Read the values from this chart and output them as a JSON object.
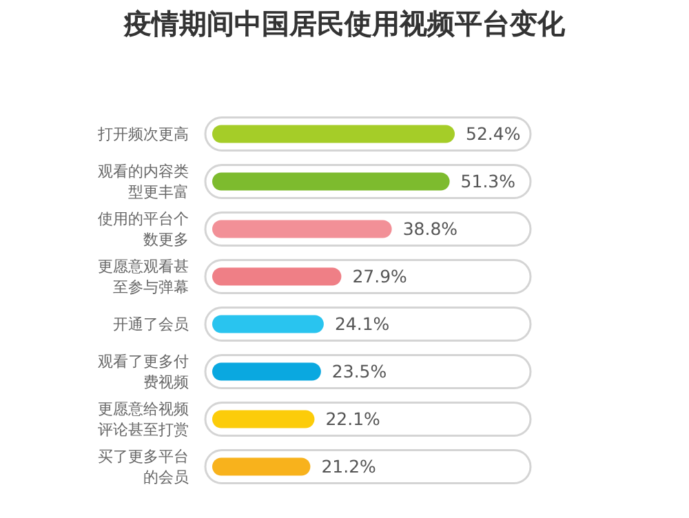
{
  "chart_data": {
    "type": "bar",
    "orientation": "horizontal",
    "title": "疫情期间中国居民使用视频平台变化",
    "categories": [
      "打开频次更高",
      "观看的内容类型更丰富",
      "使用的平台个数更多",
      "更愿意观看甚至参与弹幕",
      "开通了会员",
      "观看了更多付费视频",
      "更愿意给视频评论甚至打赏",
      "买了更多平台的会员"
    ],
    "values": [
      52.4,
      51.3,
      38.8,
      27.9,
      24.1,
      23.5,
      22.1,
      21.2
    ],
    "value_labels": [
      "52.4%",
      "51.3%",
      "38.8%",
      "27.9%",
      "24.1%",
      "23.5%",
      "22.1%",
      "21.2%"
    ],
    "colors": [
      "#a5cd28",
      "#7dbb2e",
      "#f29097",
      "#ef7f86",
      "#29c4ef",
      "#0aa8e0",
      "#fccc0a",
      "#f8b21c"
    ]
  }
}
